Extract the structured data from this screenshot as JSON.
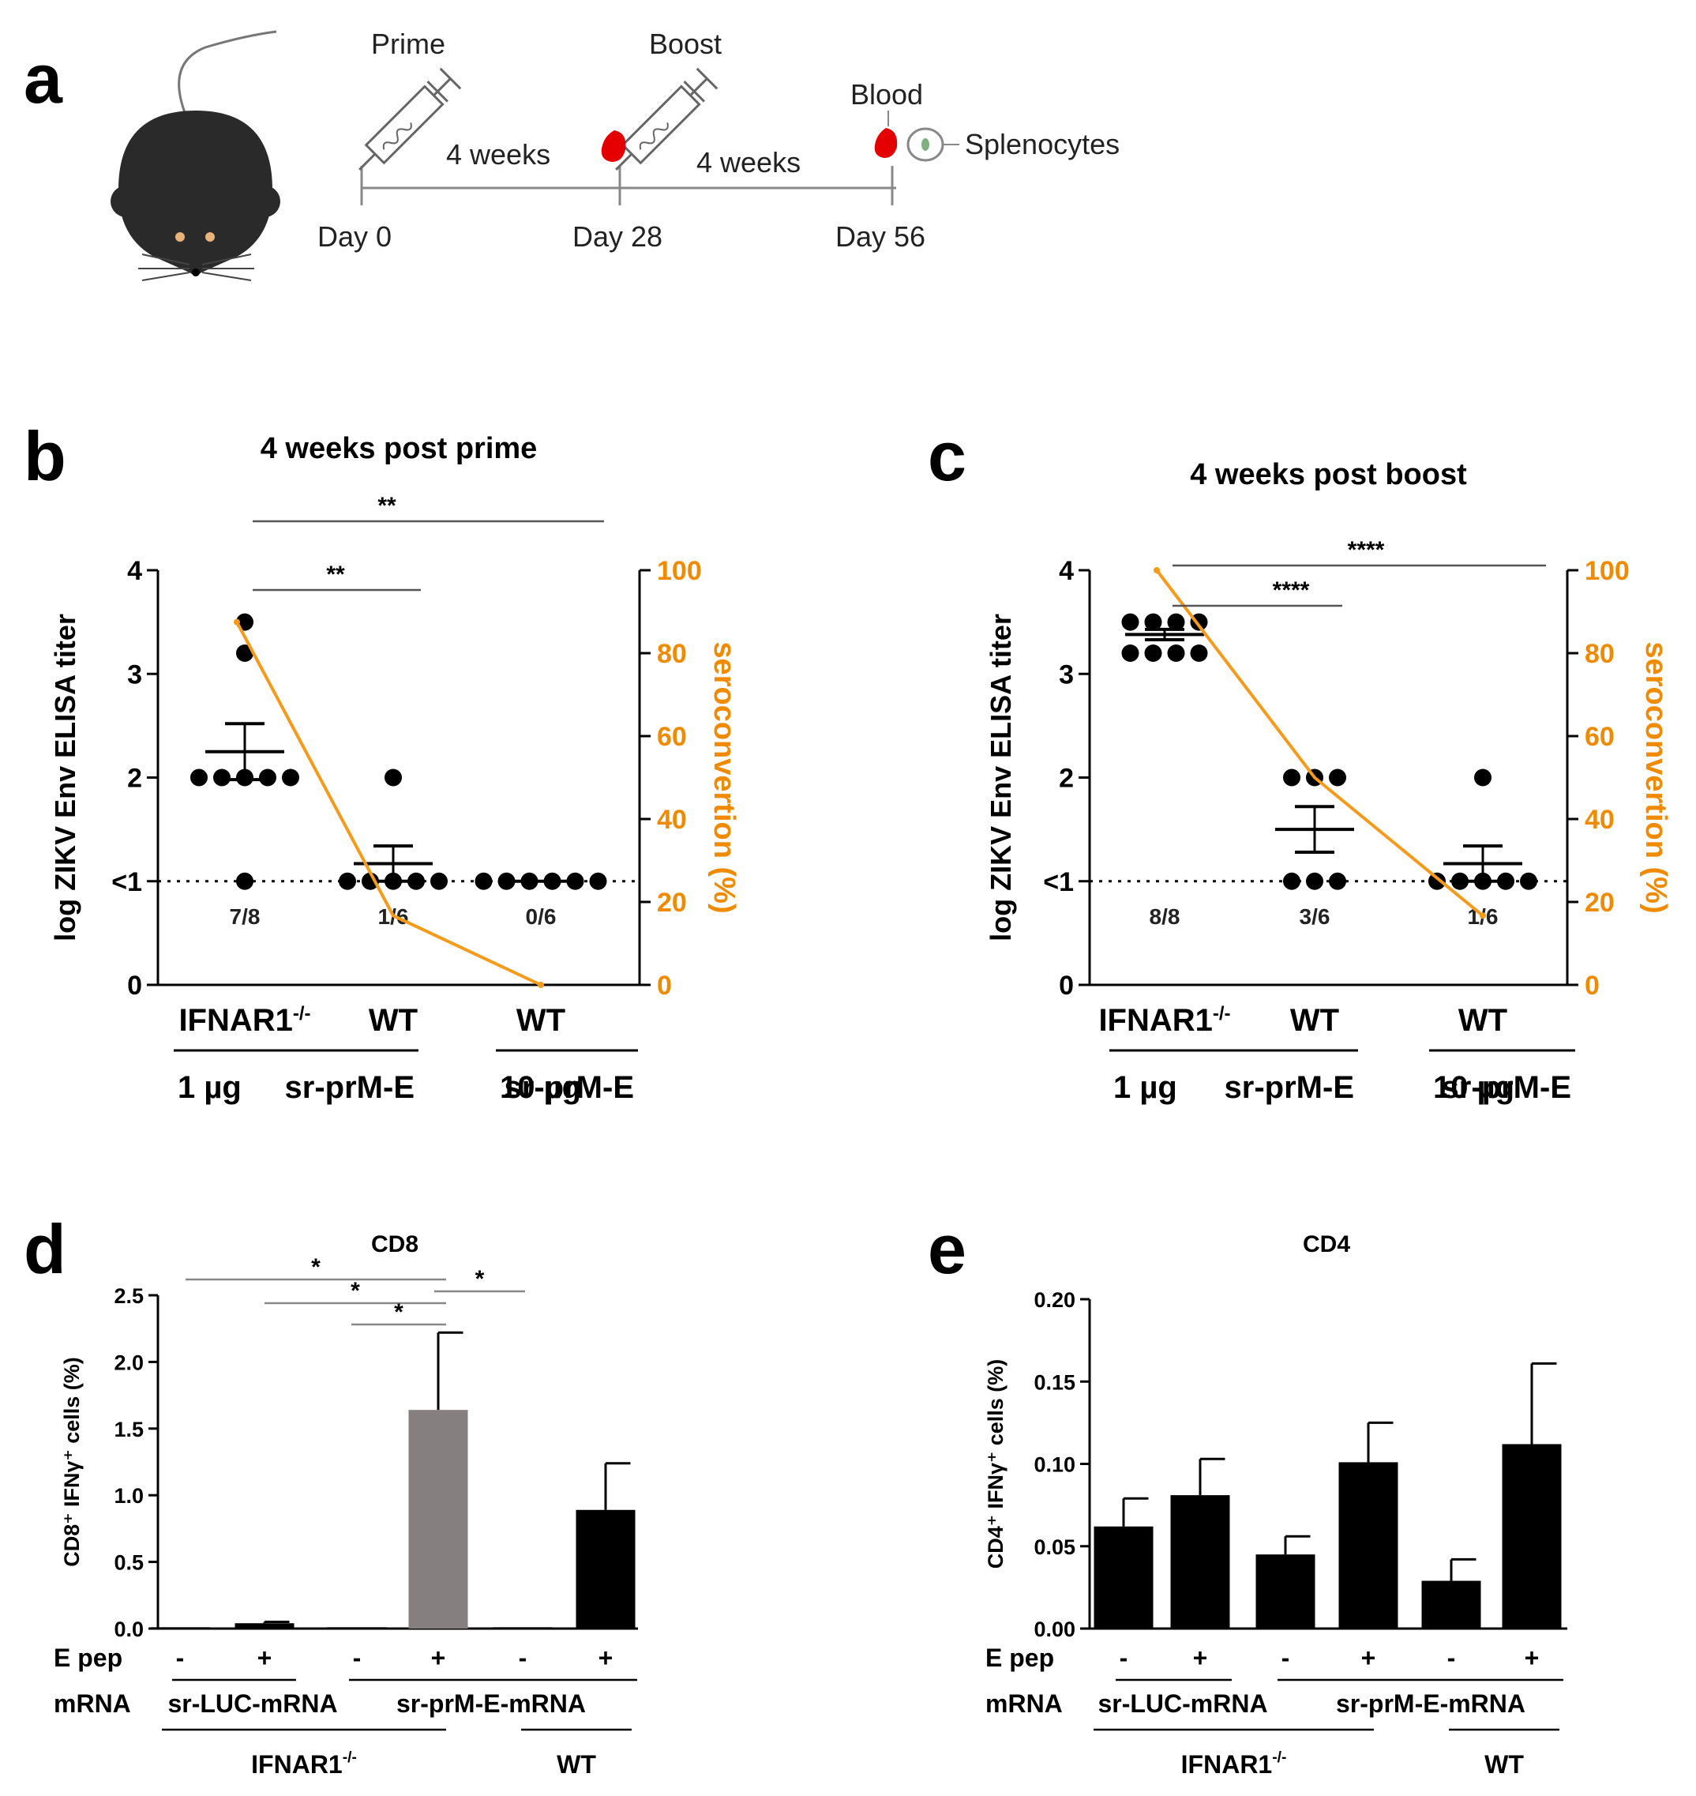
{
  "panel_a": {
    "letter": "a",
    "labels": {
      "prime": "Prime",
      "boost": "Boost",
      "blood": "Blood",
      "splenocytes": "Splenocytes"
    },
    "intervals": [
      "4 weeks",
      "4 weeks"
    ],
    "days": [
      "Day 0",
      "Day 28",
      "Day 56"
    ],
    "icons": [
      "mouse-icon",
      "syringe-icon",
      "blood-drop-icon",
      "cell-icon"
    ]
  },
  "chart_data": [
    {
      "id": "b",
      "type": "scatter",
      "letter": "b",
      "title": "4 weeks post prime",
      "ylabel": "log ZIKV Env ELISA titer",
      "y2label": "seroconvertion (%)",
      "ylim": [
        0,
        4
      ],
      "y2lim": [
        0,
        100
      ],
      "yticks": [
        "0",
        "<1",
        "2",
        "3",
        "4"
      ],
      "y2ticks": [
        "0",
        "20",
        "40",
        "60",
        "80",
        "100"
      ],
      "groups": [
        {
          "label": "IFNAR1",
          "sup": "-/-",
          "points": [
            3.5,
            3.2,
            2.0,
            2.0,
            2.0,
            2.0,
            2.0,
            1.0
          ],
          "mean": 2.25,
          "sem": 0.27,
          "ratio": "7/8",
          "seroconversion": 87.5
        },
        {
          "label": "WT",
          "sup": "",
          "points": [
            2.0,
            1.0,
            1.0,
            1.0,
            1.0,
            1.0
          ],
          "mean": 1.17,
          "sem": 0.17,
          "ratio": "1/6",
          "seroconversion": 16.7
        },
        {
          "label": "WT",
          "sup": "",
          "points": [
            1.0,
            1.0,
            1.0,
            1.0,
            1.0,
            1.0
          ],
          "mean": 1.0,
          "sem": 0,
          "ratio": "0/6",
          "seroconversion": 0
        }
      ],
      "dose_groups": [
        {
          "dose": "1 µg",
          "construct": "sr-prM-E"
        },
        {
          "dose": "10 µg",
          "construct": "sr-prM-E"
        }
      ],
      "significance": [
        {
          "from": 0,
          "to": 2,
          "label": "**"
        },
        {
          "from": 0,
          "to": 1,
          "label": "**"
        }
      ],
      "detection_limit": 1
    },
    {
      "id": "c",
      "type": "scatter",
      "letter": "c",
      "title": "4 weeks post boost",
      "ylabel": "log ZIKV Env ELISA titer",
      "y2label": "seroconvertion (%)",
      "ylim": [
        0,
        4
      ],
      "y2lim": [
        0,
        100
      ],
      "yticks": [
        "0",
        "<1",
        "2",
        "3",
        "4"
      ],
      "y2ticks": [
        "0",
        "20",
        "40",
        "60",
        "80",
        "100"
      ],
      "groups": [
        {
          "label": "IFNAR1",
          "sup": "-/-",
          "points": [
            3.5,
            3.5,
            3.5,
            3.5,
            3.2,
            3.2,
            3.2,
            3.2
          ],
          "mean": 3.38,
          "sem": 0.05,
          "ratio": "8/8",
          "seroconversion": 100
        },
        {
          "label": "WT",
          "sup": "",
          "points": [
            2.0,
            2.0,
            2.0,
            1.0,
            1.0,
            1.0
          ],
          "mean": 1.5,
          "sem": 0.22,
          "ratio": "3/6",
          "seroconversion": 50
        },
        {
          "label": "WT",
          "sup": "",
          "points": [
            2.0,
            1.0,
            1.0,
            1.0,
            1.0,
            1.0
          ],
          "mean": 1.17,
          "sem": 0.17,
          "ratio": "1/6",
          "seroconversion": 16.7
        }
      ],
      "dose_groups": [
        {
          "dose": "1 µg",
          "construct": "sr-prM-E"
        },
        {
          "dose": "10 µg",
          "construct": "sr-prM-E"
        }
      ],
      "significance": [
        {
          "from": 0,
          "to": 2,
          "label": "****"
        },
        {
          "from": 0,
          "to": 1,
          "label": "****"
        }
      ],
      "detection_limit": 1
    },
    {
      "id": "d",
      "type": "bar",
      "letter": "d",
      "title": "CD8",
      "ylabel": "CD8⁺ IFNγ⁺ cells (%)",
      "ylim": [
        0,
        2.5
      ],
      "yticks": [
        "0.0",
        "0.5",
        "1.0",
        "1.5",
        "2.0",
        "2.5"
      ],
      "epep": [
        "-",
        "+",
        "-",
        "+",
        "-",
        "+"
      ],
      "values": [
        0.01,
        0.04,
        0.01,
        1.64,
        0.01,
        0.89
      ],
      "errors": [
        0.0,
        0.01,
        0.0,
        0.58,
        0.0,
        0.35
      ],
      "colors": [
        "#000000",
        "#000000",
        "#000000",
        "#857f7f",
        "#000000",
        "#000000"
      ],
      "row_labels": {
        "epep": "E pep",
        "mrna": "mRNA"
      },
      "mrna_groups": [
        {
          "label": "sr-LUC-mRNA",
          "span": [
            0,
            1
          ]
        },
        {
          "label": "sr-prM-E-mRNA",
          "span": [
            2,
            5
          ]
        }
      ],
      "strain_groups": [
        {
          "label": "IFNAR1",
          "sup": "-/-",
          "span": [
            0,
            3
          ]
        },
        {
          "label": "WT",
          "sup": "",
          "span": [
            4,
            5
          ]
        }
      ],
      "significance": [
        {
          "from": 0,
          "to": 3,
          "label": "*"
        },
        {
          "from": 1,
          "to": 3,
          "label": "*"
        },
        {
          "from": 2,
          "to": 3,
          "label": "*"
        },
        {
          "from": 3,
          "to": 4,
          "label": "*"
        }
      ]
    },
    {
      "id": "e",
      "type": "bar",
      "letter": "e",
      "title": "CD4",
      "ylabel": "CD4⁺ IFNγ⁺ cells (%)",
      "ylim": [
        0,
        0.2
      ],
      "yticks": [
        "0.00",
        "0.05",
        "0.10",
        "0.15",
        "0.20"
      ],
      "epep": [
        "-",
        "+",
        "-",
        "+",
        "-",
        "+"
      ],
      "values": [
        0.062,
        0.081,
        0.045,
        0.101,
        0.029,
        0.112
      ],
      "errors": [
        0.017,
        0.022,
        0.011,
        0.024,
        0.013,
        0.049
      ],
      "colors": [
        "#000000",
        "#000000",
        "#000000",
        "#000000",
        "#000000",
        "#000000"
      ],
      "row_labels": {
        "epep": "E pep",
        "mrna": "mRNA"
      },
      "mrna_groups": [
        {
          "label": "sr-LUC-mRNA",
          "span": [
            0,
            1
          ]
        },
        {
          "label": "sr-prM-E-mRNA",
          "span": [
            2,
            5
          ]
        }
      ],
      "strain_groups": [
        {
          "label": "IFNAR1",
          "sup": "-/-",
          "span": [
            0,
            3
          ]
        },
        {
          "label": "WT",
          "sup": "",
          "span": [
            4,
            5
          ]
        }
      ],
      "significance": []
    }
  ]
}
